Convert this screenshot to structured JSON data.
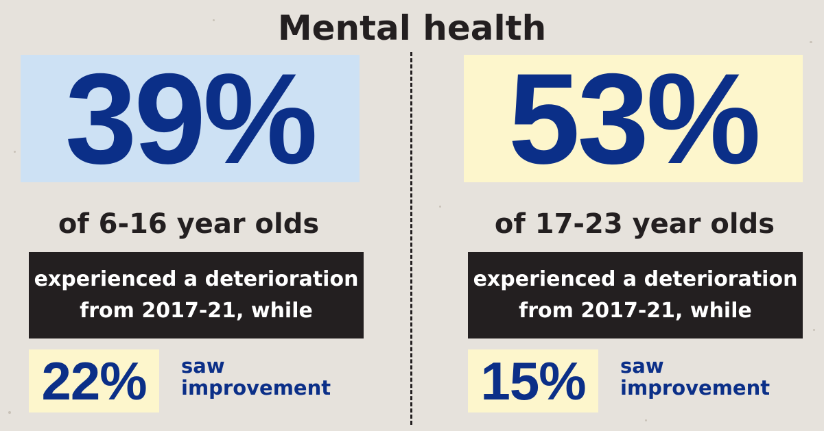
{
  "title": "Mental health",
  "left": {
    "percent": "39%",
    "group": "of 6-16 year olds",
    "box_line1": "experienced a deterioration",
    "box_line2": "from 2017-21, while",
    "improve_percent": "22%",
    "improve_line1": "saw",
    "improve_line2": "improvement"
  },
  "right": {
    "percent": "53%",
    "group": "of 17-23 year olds",
    "box_line1": "experienced a deterioration",
    "box_line2": "from 2017-21, while",
    "improve_percent": "15%",
    "improve_line1": "saw",
    "improve_line2": "improvement"
  },
  "colors": {
    "navy": "#0b2f88",
    "light_blue": "#cde1f4",
    "light_yellow": "#fdf6cc",
    "dark": "#231f20",
    "background": "#e6e2dc"
  }
}
